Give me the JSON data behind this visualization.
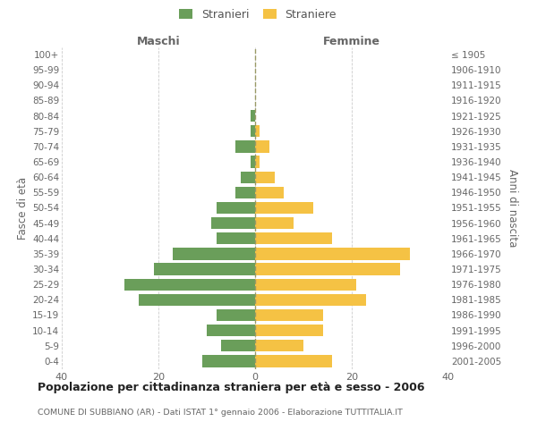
{
  "age_groups": [
    "0-4",
    "5-9",
    "10-14",
    "15-19",
    "20-24",
    "25-29",
    "30-34",
    "35-39",
    "40-44",
    "45-49",
    "50-54",
    "55-59",
    "60-64",
    "65-69",
    "70-74",
    "75-79",
    "80-84",
    "85-89",
    "90-94",
    "95-99",
    "100+"
  ],
  "birth_years": [
    "2001-2005",
    "1996-2000",
    "1991-1995",
    "1986-1990",
    "1981-1985",
    "1976-1980",
    "1971-1975",
    "1966-1970",
    "1961-1965",
    "1956-1960",
    "1951-1955",
    "1946-1950",
    "1941-1945",
    "1936-1940",
    "1931-1935",
    "1926-1930",
    "1921-1925",
    "1916-1920",
    "1911-1915",
    "1906-1910",
    "≤ 1905"
  ],
  "maschi": [
    11,
    7,
    10,
    8,
    24,
    27,
    21,
    17,
    8,
    9,
    8,
    4,
    3,
    1,
    4,
    1,
    1,
    0,
    0,
    0,
    0
  ],
  "femmine": [
    16,
    10,
    14,
    14,
    23,
    21,
    30,
    32,
    16,
    8,
    12,
    6,
    4,
    1,
    3,
    1,
    0,
    0,
    0,
    0,
    0
  ],
  "color_maschi": "#6a9e5a",
  "color_femmine": "#f5c244",
  "title_main": "Popolazione per cittadinanza straniera per età e sesso - 2006",
  "title_sub": "COMUNE DI SUBBIANO (AR) - Dati ISTAT 1° gennaio 2006 - Elaborazione TUTTITALIA.IT",
  "label_maschi": "Maschi",
  "label_femmine": "Femmine",
  "legend_stranieri": "Stranieri",
  "legend_straniere": "Straniere",
  "ylabel_left": "Fasce di età",
  "ylabel_right": "Anni di nascita",
  "xlim": 40,
  "grid_color": "#cccccc",
  "background_color": "#ffffff",
  "dashed_line_color": "#aaaaaa"
}
